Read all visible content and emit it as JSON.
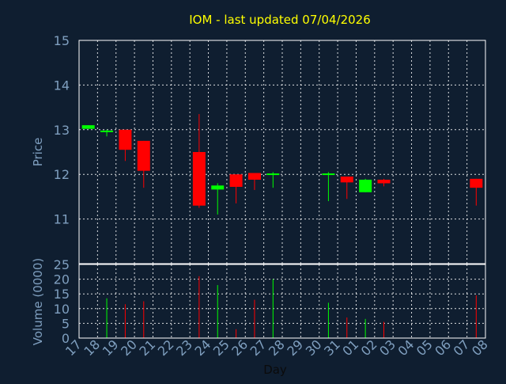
{
  "chart_data": [
    {
      "type": "candlestick",
      "title": "IOM - last updated 07/04/2026",
      "ylabel": "Price",
      "ylim": [
        10,
        15
      ],
      "yticks": [
        11,
        12,
        13,
        14,
        15
      ],
      "grid": true,
      "colors": {
        "up": "#00ff00",
        "down": "#ff0000",
        "title": "#ffff00",
        "axis_text": "#7f9fbf",
        "frame": "#ffffff",
        "background": "#0f1e30"
      },
      "categories": [
        "17",
        "18",
        "19",
        "20",
        "21",
        "22",
        "23",
        "24",
        "25",
        "26",
        "27",
        "28",
        "29",
        "30",
        "31",
        "01",
        "02",
        "03",
        "04",
        "05",
        "06",
        "07",
        "08"
      ],
      "candles": [
        {
          "day": "17",
          "open": 13.02,
          "close": 13.1,
          "high": 13.1,
          "low": 13.02
        },
        {
          "day": "18",
          "open": 12.96,
          "close": 12.98,
          "high": 13.0,
          "low": 12.85
        },
        {
          "day": "19",
          "open": 13.0,
          "close": 12.55,
          "high": 13.0,
          "low": 12.3
        },
        {
          "day": "20",
          "open": 12.75,
          "close": 12.08,
          "high": 12.75,
          "low": 11.7
        },
        {
          "day": "23",
          "open": 12.5,
          "close": 11.3,
          "high": 13.35,
          "low": 11.25
        },
        {
          "day": "24",
          "open": 11.66,
          "close": 11.75,
          "high": 11.8,
          "low": 11.1
        },
        {
          "day": "25",
          "open": 12.0,
          "close": 11.72,
          "high": 12.0,
          "low": 11.35
        },
        {
          "day": "26",
          "open": 12.03,
          "close": 11.88,
          "high": 12.03,
          "low": 11.65
        },
        {
          "day": "27",
          "open": 12.0,
          "close": 12.02,
          "high": 12.05,
          "low": 11.7
        },
        {
          "day": "30",
          "open": 12.0,
          "close": 12.02,
          "high": 12.05,
          "low": 11.4
        },
        {
          "day": "31",
          "open": 11.95,
          "close": 11.82,
          "high": 11.95,
          "low": 11.45
        },
        {
          "day": "01",
          "open": 11.6,
          "close": 11.88,
          "high": 11.9,
          "low": 11.6
        },
        {
          "day": "02",
          "open": 11.88,
          "close": 11.8,
          "high": 11.9,
          "low": 11.73
        },
        {
          "day": "07",
          "open": 11.9,
          "close": 11.7,
          "high": 11.9,
          "low": 11.3
        }
      ]
    },
    {
      "type": "bar",
      "xlabel": "Day",
      "ylabel": "Volume (0000)",
      "ylim": [
        0,
        25
      ],
      "yticks": [
        0,
        5,
        10,
        15,
        20,
        25
      ],
      "grid": true,
      "categories": [
        "17",
        "18",
        "19",
        "20",
        "21",
        "22",
        "23",
        "24",
        "25",
        "26",
        "27",
        "28",
        "29",
        "30",
        "31",
        "01",
        "02",
        "03",
        "04",
        "05",
        "06",
        "07",
        "08"
      ],
      "bars": [
        {
          "day": "18",
          "value": 13.5,
          "color": "up"
        },
        {
          "day": "19",
          "value": 11.5,
          "color": "down"
        },
        {
          "day": "20",
          "value": 12.5,
          "color": "down"
        },
        {
          "day": "23",
          "value": 21.0,
          "color": "down"
        },
        {
          "day": "24",
          "value": 18.0,
          "color": "up"
        },
        {
          "day": "25",
          "value": 3.0,
          "color": "down"
        },
        {
          "day": "26",
          "value": 13.0,
          "color": "down"
        },
        {
          "day": "27",
          "value": 20.0,
          "color": "up"
        },
        {
          "day": "30",
          "value": 12.0,
          "color": "up"
        },
        {
          "day": "31",
          "value": 7.0,
          "color": "down"
        },
        {
          "day": "01",
          "value": 6.5,
          "color": "up"
        },
        {
          "day": "02",
          "value": 5.5,
          "color": "down"
        },
        {
          "day": "07",
          "value": 14.5,
          "color": "down"
        }
      ]
    }
  ]
}
